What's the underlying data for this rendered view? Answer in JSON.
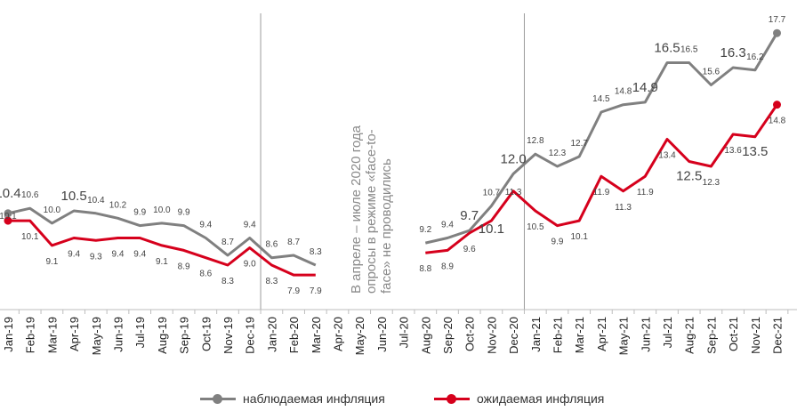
{
  "chart_data": {
    "type": "line",
    "categories": [
      "Jan-19",
      "Feb-19",
      "Mar-19",
      "Apr-19",
      "May-19",
      "Jun-19",
      "Jul-19",
      "Aug-19",
      "Sep-19",
      "Oct-19",
      "Nov-19",
      "Dec-19",
      "Jan-20",
      "Feb-20",
      "Mar-20",
      "Apr-20",
      "May-20",
      "Jun-20",
      "Jul-20",
      "Aug-20",
      "Sep-20",
      "Oct-20",
      "Nov-20",
      "Dec-20",
      "Jan-21",
      "Feb-21",
      "Mar-21",
      "Apr-21",
      "May-21",
      "Jun-21",
      "Jul-21",
      "Aug-21",
      "Sep-21",
      "Oct-21",
      "Nov-21",
      "Dec-21"
    ],
    "series": [
      {
        "name": "наблюдаемая инфляция",
        "color": "#808080",
        "values": [
          10.4,
          10.6,
          10.0,
          10.5,
          10.4,
          10.2,
          9.9,
          10.0,
          9.9,
          9.4,
          8.7,
          9.4,
          8.6,
          8.7,
          8.3,
          null,
          null,
          null,
          null,
          9.2,
          9.4,
          9.7,
          10.7,
          12.0,
          12.8,
          12.3,
          12.7,
          14.5,
          14.8,
          14.9,
          16.5,
          16.5,
          15.6,
          16.3,
          16.2,
          17.7
        ],
        "labels": [
          "10.4",
          "10.6",
          "10.0",
          "10.5",
          "10.4",
          "10.2",
          "9.9",
          "10.0",
          "9.9",
          "9.4",
          "8.7",
          "9.4",
          "8.6",
          "8.7",
          "8.3",
          "",
          "",
          "",
          "",
          "9.2",
          "9.4",
          "9.7",
          "10.7",
          "12.0",
          "12.8",
          "12.3",
          "12.7",
          "14.5",
          "14.8",
          "14.9",
          "16.5",
          "16.5",
          "15.6",
          "16.3",
          "16.2",
          "17.7"
        ]
      },
      {
        "name": "ожидаемая инфляция",
        "color": "#d6001c",
        "values": [
          10.1,
          10.1,
          9.1,
          9.4,
          9.3,
          9.4,
          9.4,
          9.1,
          8.9,
          8.6,
          8.3,
          9.0,
          8.3,
          7.9,
          7.9,
          null,
          null,
          null,
          null,
          8.8,
          8.9,
          9.6,
          10.1,
          11.3,
          10.5,
          9.9,
          10.1,
          11.9,
          11.3,
          11.9,
          13.4,
          12.5,
          12.3,
          13.6,
          13.5,
          14.8
        ],
        "labels": [
          "10.1",
          "10.1",
          "9.1",
          "9.4",
          "9.3",
          "9.4",
          "9.4",
          "9.1",
          "8.9",
          "8.6",
          "8.3",
          "9.0",
          "8.3",
          "7.9",
          "7.9",
          "",
          "",
          "",
          "",
          "8.8",
          "8.9",
          "9.6",
          "10.1",
          "11.3",
          "10.5",
          "9.9",
          "10.1",
          "11.9",
          "11.3",
          "11.9",
          "13.4",
          "12.5",
          "12.3",
          "13.6",
          "13.5",
          "14.8"
        ]
      }
    ],
    "ylim": [
      6.5,
      18.5
    ],
    "note_lines": [
      "В апреле – июле 2020 года",
      "опросы в режиме «face-to-",
      "face» не проводились"
    ]
  }
}
